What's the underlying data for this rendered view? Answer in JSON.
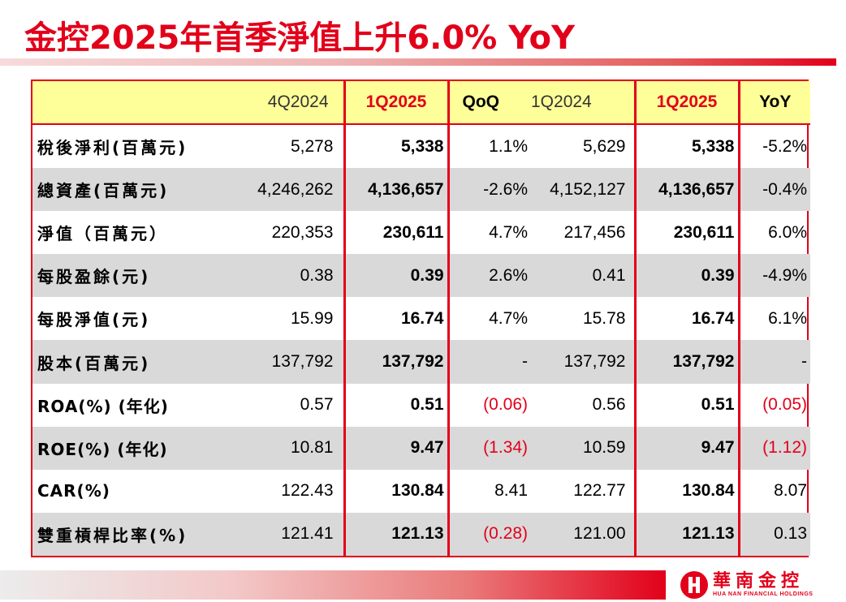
{
  "title": "金控2025年首季淨值上升6.0% YoY",
  "colors": {
    "accent": "#e2001a",
    "header_bg": "#ffff99",
    "row_shade": "#d9d9d9"
  },
  "table": {
    "headers": [
      "",
      "4Q2024",
      "1Q2025",
      "QoQ",
      "1Q2024",
      "1Q2025",
      "YoY"
    ],
    "rows": [
      {
        "label": "稅後淨利(百萬元)",
        "cells": [
          "5,278",
          "5,338",
          "1.1%",
          "5,629",
          "5,338",
          "-5.2%"
        ]
      },
      {
        "label": "總資產(百萬元)",
        "cells": [
          "4,246,262",
          "4,136,657",
          "-2.6%",
          "4,152,127",
          "4,136,657",
          "-0.4%"
        ]
      },
      {
        "label": "淨值（百萬元）",
        "cells": [
          "220,353",
          "230,611",
          "4.7%",
          "217,456",
          "230,611",
          "6.0%"
        ]
      },
      {
        "label": "每股盈餘(元)",
        "cells": [
          "0.38",
          "0.39",
          "2.6%",
          "0.41",
          "0.39",
          "-4.9%"
        ]
      },
      {
        "label": "每股淨值(元)",
        "cells": [
          "15.99",
          "16.74",
          "4.7%",
          "15.78",
          "16.74",
          "6.1%"
        ]
      },
      {
        "label": "股本(百萬元)",
        "cells": [
          "137,792",
          "137,792",
          "-",
          "137,792",
          "137,792",
          "-"
        ]
      },
      {
        "label": "ROA(%) (年化)",
        "cells": [
          "0.57",
          "0.51",
          "(0.06)",
          "0.56",
          "0.51",
          "(0.05)"
        ]
      },
      {
        "label": "ROE(%) (年化)",
        "cells": [
          "10.81",
          "9.47",
          "(1.34)",
          "10.59",
          "9.47",
          "(1.12)"
        ]
      },
      {
        "label": "CAR(%)",
        "cells": [
          "122.43",
          "130.84",
          "8.41",
          "122.77",
          "130.84",
          "8.07"
        ]
      },
      {
        "label": "雙重槓桿比率(%)",
        "cells": [
          "121.41",
          "121.13",
          "(0.28)",
          "121.00",
          "121.13",
          "0.13"
        ]
      }
    ]
  },
  "logo": {
    "cn": "華南金控",
    "en": "HUA NAN FINANCIAL HOLDINGS"
  }
}
